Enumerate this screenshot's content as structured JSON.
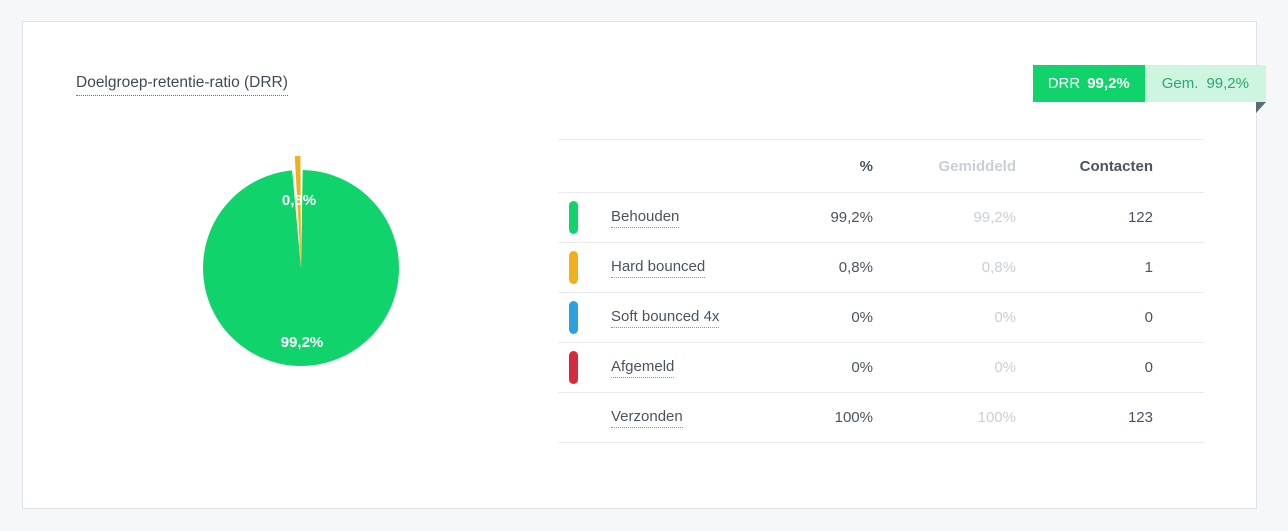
{
  "card": {
    "title": "Doelgroep-retentie-ratio (DRR)"
  },
  "ribbon": {
    "drr_label": "DRR",
    "drr_value": "99,2%",
    "avg_label": "Gem.",
    "avg_value": "99,2%",
    "drr_bg": "#11d36b",
    "drr_text": "#ffffff",
    "avg_bg": "#cdf5e0",
    "avg_text": "#2ca86b",
    "fold_color": "#5c6b79"
  },
  "chart_data": {
    "type": "pie",
    "title": "Doelgroep-retentie-ratio (DRR)",
    "legend_position": "none",
    "slices": [
      {
        "label": "Behouden",
        "value": 99.2,
        "display": "99,2%",
        "color": "#11d36b"
      },
      {
        "label": "Hard bounced",
        "value": 0.8,
        "display": "0,8%",
        "color": "#f2af1d"
      }
    ]
  },
  "table": {
    "headers": {
      "pct": "%",
      "avg": "Gemiddeld",
      "contacts": "Contacten"
    },
    "rows": [
      {
        "label": "Behouden",
        "swatch": "#11d36b",
        "pct": "99,2%",
        "avg": "99,2%",
        "contacts": "122"
      },
      {
        "label": "Hard bounced",
        "swatch": "#f2af1d",
        "pct": "0,8%",
        "avg": "0,8%",
        "contacts": "1"
      },
      {
        "label": "Soft bounced 4x",
        "swatch": "#2ba2dd",
        "pct": "0%",
        "avg": "0%",
        "contacts": "0"
      },
      {
        "label": "Afgemeld",
        "swatch": "#d52b3f",
        "pct": "0%",
        "avg": "0%",
        "contacts": "0"
      },
      {
        "label": "Verzonden",
        "swatch": null,
        "pct": "100%",
        "avg": "100%",
        "contacts": "123"
      }
    ]
  }
}
